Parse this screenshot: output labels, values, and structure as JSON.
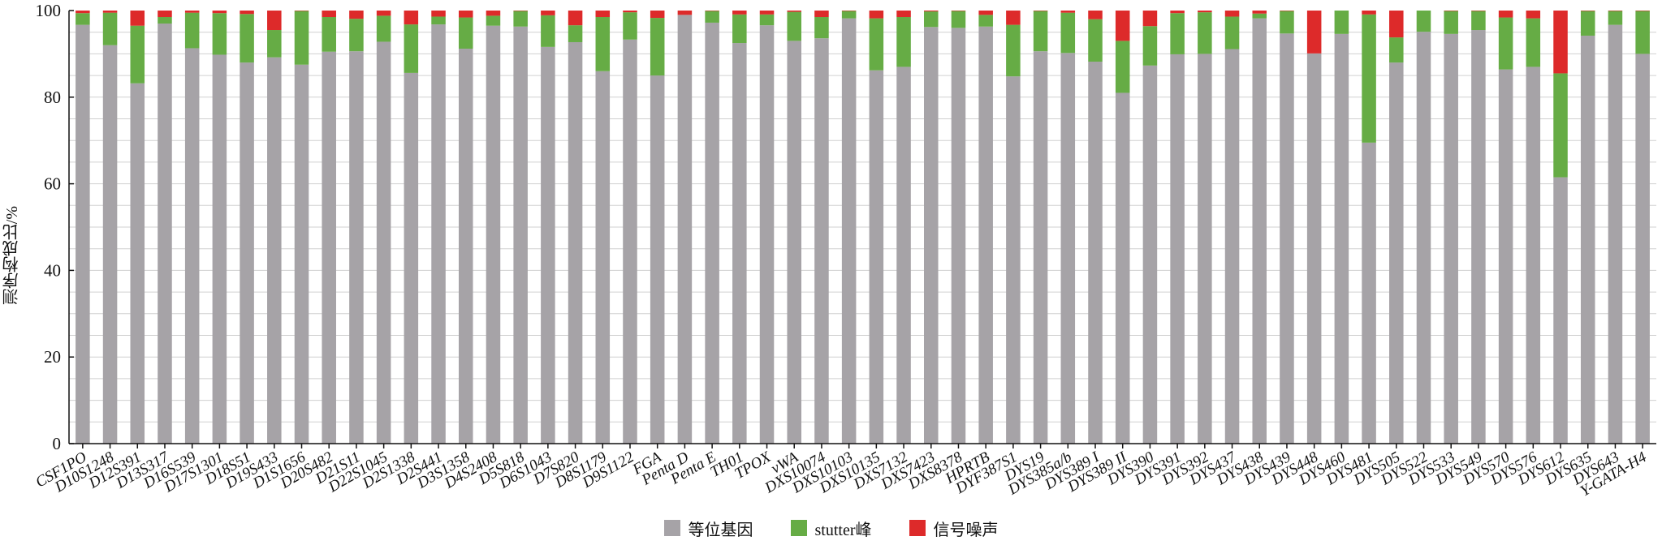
{
  "chart_data": {
    "type": "bar",
    "stacked": true,
    "title": "",
    "xlabel": "",
    "ylabel": "测序构成比/%",
    "ylim": [
      0,
      100
    ],
    "yticks": [
      0,
      20,
      40,
      60,
      80,
      100
    ],
    "grid": "horizontal",
    "legend_position": "bottom-center",
    "categories": [
      "CSF1PO",
      "D10S1248",
      "D12S391",
      "D13S317",
      "D16S539",
      "D17S1301",
      "D18S51",
      "D19S433",
      "D1S1656",
      "D20S482",
      "D21S11",
      "D22S1045",
      "D2S1338",
      "D2S441",
      "D3S1358",
      "D4S2408",
      "D5S818",
      "D6S1043",
      "D7S820",
      "D8S1179",
      "D9S1122",
      "FGA",
      "Penta D",
      "Penta E",
      "TH01",
      "TPOX",
      "vWA",
      "DXS10074",
      "DXS10103",
      "DXS10135",
      "DXS7132",
      "DXS7423",
      "DXS8378",
      "HPRTB",
      "DYF387S1",
      "DYS19",
      "DYS385a/b",
      "DYS389 I",
      "DYS389 II",
      "DYS390",
      "DYS391",
      "DYS392",
      "DYS437",
      "DYS438",
      "DYS439",
      "DYS448",
      "DYS460",
      "DYS481",
      "DYS505",
      "DYS522",
      "DYS533",
      "DYS549",
      "DYS570",
      "DYS576",
      "DYS612",
      "DYS635",
      "DYS643",
      "Y-GATA-H4"
    ],
    "series": [
      {
        "name": "等位基因",
        "color": "#a6a3a7",
        "values": [
          96.7,
          92.0,
          83.2,
          97.0,
          91.3,
          89.8,
          88.0,
          89.2,
          87.5,
          90.5,
          90.6,
          92.8,
          85.6,
          96.8,
          91.2,
          96.5,
          96.3,
          91.6,
          92.7,
          86.0,
          93.3,
          85.0,
          99.0,
          97.2,
          92.5,
          96.6,
          93.0,
          93.6,
          98.2,
          86.2,
          87.0,
          96.2,
          96.0,
          96.3,
          84.8,
          90.6,
          90.2,
          88.2,
          81.0,
          87.3,
          89.9,
          90.0,
          91.1,
          98.2,
          94.7,
          90.1,
          94.6,
          69.5,
          88.0,
          95.1,
          94.6,
          95.5,
          86.4,
          87.0,
          61.5,
          94.2,
          96.7,
          90.0
        ]
      },
      {
        "name": "stutter峰",
        "color": "#66ac45",
        "values": [
          2.7,
          7.5,
          13.3,
          1.5,
          8.2,
          9.6,
          11.2,
          6.3,
          12.4,
          8.0,
          7.5,
          6.0,
          11.2,
          1.8,
          7.2,
          2.3,
          3.6,
          7.3,
          3.9,
          12.5,
          6.3,
          13.3,
          0.0,
          2.7,
          6.6,
          2.5,
          6.7,
          4.9,
          1.7,
          12.0,
          11.5,
          3.6,
          3.9,
          2.7,
          11.9,
          9.3,
          9.3,
          9.8,
          12.0,
          9.1,
          9.5,
          9.6,
          7.5,
          1.1,
          5.2,
          0.0,
          5.4,
          29.6,
          5.8,
          4.9,
          5.3,
          4.4,
          12.0,
          11.2,
          24.0,
          5.7,
          3.2,
          9.9
        ]
      },
      {
        "name": "信号噪声",
        "color": "#dd2a2a",
        "values": [
          0.6,
          0.5,
          3.5,
          1.5,
          0.5,
          0.6,
          0.8,
          4.5,
          0.1,
          1.5,
          1.9,
          1.2,
          3.2,
          1.4,
          1.6,
          1.2,
          0.1,
          1.1,
          3.4,
          1.5,
          0.4,
          1.7,
          1.0,
          0.1,
          0.9,
          0.9,
          0.3,
          1.5,
          0.1,
          1.8,
          1.5,
          0.2,
          0.1,
          1.0,
          3.3,
          0.1,
          0.5,
          2.0,
          7.0,
          3.6,
          0.6,
          0.4,
          1.4,
          0.7,
          0.1,
          9.9,
          0.0,
          0.9,
          6.2,
          0.0,
          0.1,
          0.1,
          1.6,
          1.8,
          14.5,
          0.1,
          0.1,
          0.1
        ]
      }
    ]
  },
  "legend": {
    "items": [
      {
        "label": "等位基因",
        "color": "#a6a3a7"
      },
      {
        "label": "stutter峰",
        "color": "#66ac45"
      },
      {
        "label": "信号噪声",
        "color": "#dd2a2a"
      }
    ]
  },
  "axis": {
    "ylabel": "测序构成比/%"
  }
}
